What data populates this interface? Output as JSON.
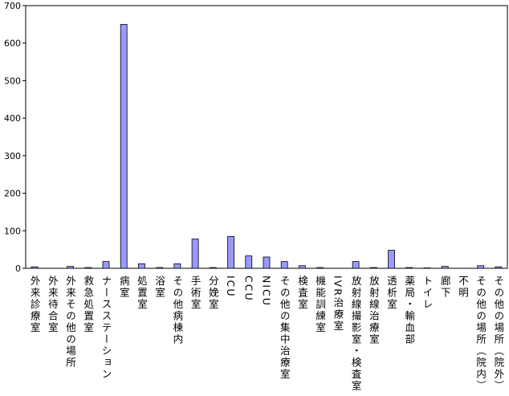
{
  "chart_data": {
    "type": "bar",
    "categories": [
      "外来診療室",
      "外来待合室",
      "外来その他の場所",
      "救急処置室",
      "ナースステーション",
      "病室",
      "処置室",
      "浴室",
      "その他病棟内",
      "手術室",
      "分娩室",
      "ICU",
      "CCU",
      "NICU",
      "その他の集中治療室",
      "検査室",
      "機能訓練室",
      "IVR治療室",
      "放射線撮影室・検査室",
      "放射線治療室",
      "透析室",
      "薬局・輸血部",
      "トイレ",
      "廊下",
      "不明",
      "その他の場所（院内）",
      "その他の場所（院外）"
    ],
    "values": [
      4,
      0,
      5,
      2,
      18,
      650,
      12,
      2,
      12,
      78,
      2,
      85,
      33,
      30,
      18,
      7,
      2,
      0,
      18,
      2,
      48,
      2,
      1,
      5,
      0,
      7,
      4
    ],
    "color": "#9999ff",
    "ylim": [
      0,
      700
    ],
    "yticks": [
      0,
      100,
      200,
      300,
      400,
      500,
      600,
      700
    ],
    "grid": false
  }
}
